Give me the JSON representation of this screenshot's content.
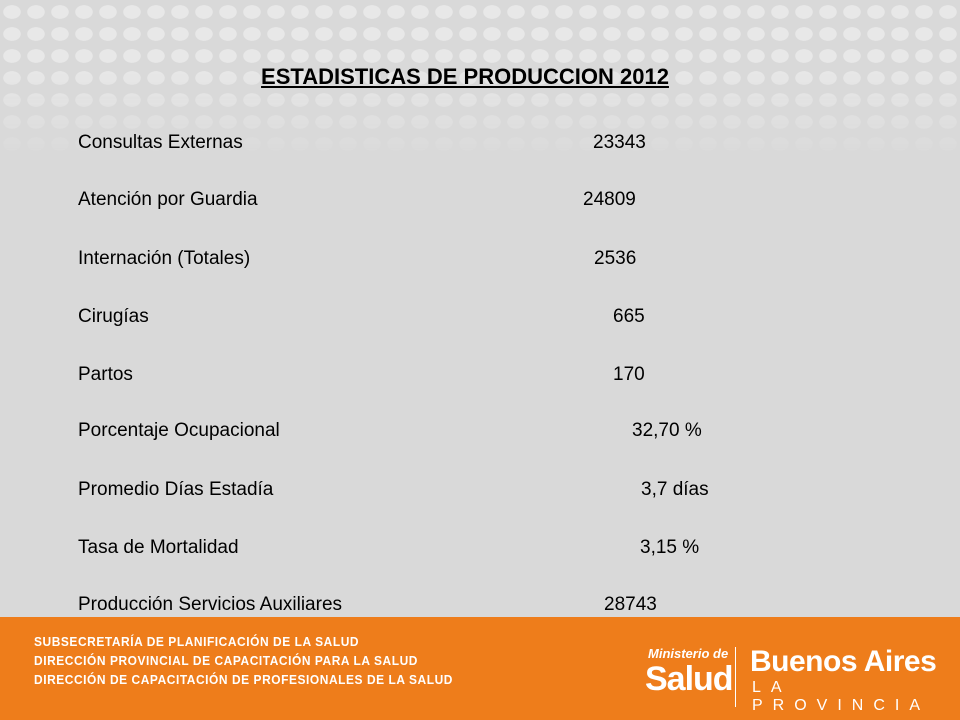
{
  "header": {
    "title": "ESTADISTICAS DE PRODUCCION 2012"
  },
  "rows": [
    {
      "label": "Consultas Externas",
      "value": "23343"
    },
    {
      "label": "Atención por Guardia",
      "value": "24809"
    },
    {
      "label": "Internación (Totales)",
      "value": "2536"
    },
    {
      "label": "Cirugías",
      "value": "665"
    },
    {
      "label": "Partos",
      "value": "170"
    },
    {
      "label": "Porcentaje Ocupacional",
      "value": "32,70 %"
    },
    {
      "label": "Promedio Días Estadía",
      "value": "3,7 días"
    },
    {
      "label": "Tasa de Mortalidad",
      "value": "3,15 %"
    },
    {
      "label": "Producción Servicios Auxiliares",
      "value": "28743"
    }
  ],
  "footer": {
    "lines": [
      "SUBSECRETARÍA DE PLANIFICACIÓN DE LA SALUD",
      "DIRECCIÓN PROVINCIAL DE CAPACITACIÓN PARA LA SALUD",
      "DIRECCIÓN DE CAPACITACIÓN DE PROFESIONALES DE LA SALUD"
    ],
    "ministry": {
      "top": "Ministerio de",
      "name": "Salud"
    },
    "province": {
      "name": "Buenos Aires",
      "sub": "LA PROVINCIA"
    }
  }
}
